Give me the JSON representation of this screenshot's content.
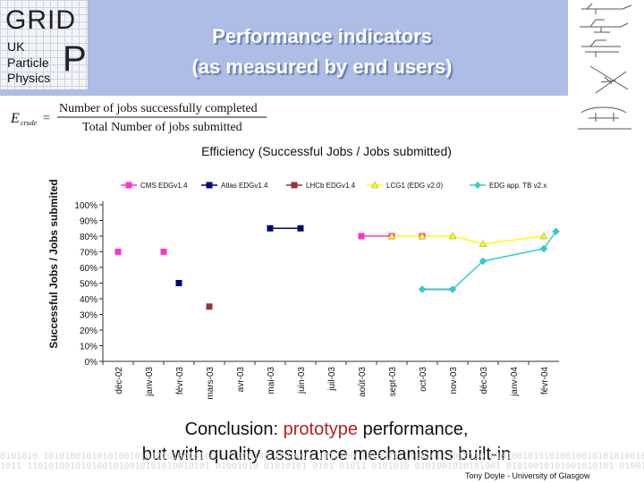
{
  "header": {
    "logo": {
      "grid": "GRID",
      "uk": "UK",
      "particle": "Particle",
      "physics": "Physics",
      "p": "P"
    },
    "title_line1": "Performance indicators",
    "title_line2": "(as measured by end users)",
    "bg_color": "#aebde6"
  },
  "formula": {
    "lhs": "E",
    "lhs_sub": "crude",
    "numerator": "Number of jobs successfully completed",
    "denominator": "Total Number of jobs submitted"
  },
  "chart_data": {
    "type": "line",
    "title": "Efficiency (Successful Jobs / Jobs submitted)",
    "xlabel": "",
    "ylabel": "Successful Jobs / Jobs submited",
    "ylim": [
      0,
      1
    ],
    "yticks": [
      "0%",
      "10%",
      "20%",
      "30%",
      "40%",
      "50%",
      "60%",
      "70%",
      "80%",
      "90%",
      "100%"
    ],
    "categories": [
      "déc-02",
      "janv-03",
      "févr-03",
      "mars-03",
      "avr-03",
      "mai-03",
      "juin-03",
      "juil-03",
      "août-03",
      "sept-03",
      "oct-03",
      "nov-03",
      "déc-03",
      "janv-04",
      "févr-04"
    ],
    "legend_position": "top",
    "series": [
      {
        "name": "CMS EDGv1.4",
        "color": "#ff33cc",
        "marker": "square",
        "connect": false,
        "points": [
          {
            "x": 0,
            "y": 0.7
          },
          {
            "x": 1.5,
            "y": 0.7
          }
        ]
      },
      {
        "name": "Atlas EDGv1.4",
        "color": "#000080",
        "marker": "square",
        "connect": false,
        "points": [
          {
            "x": 2,
            "y": 0.5
          },
          {
            "x": 5,
            "y": 0.85
          },
          {
            "x": 6,
            "y": 0.85
          }
        ]
      },
      {
        "name": "LHCb EDGv1.4",
        "color": "#993333",
        "marker": "square",
        "connect": false,
        "points": [
          {
            "x": 3,
            "y": 0.35
          }
        ]
      },
      {
        "name": "LCG1 (EDG v2.0)",
        "color": "#ffff00",
        "marker": "triangle",
        "connect": true,
        "points": [
          {
            "x": 9,
            "y": 0.8
          },
          {
            "x": 10,
            "y": 0.8
          },
          {
            "x": 11,
            "y": 0.8
          },
          {
            "x": 12,
            "y": 0.75
          },
          {
            "x": 14,
            "y": 0.8
          }
        ]
      },
      {
        "name": "EDG app. TB v2.x",
        "color": "#33cccc",
        "marker": "diamond",
        "connect": true,
        "points": [
          {
            "x": 10,
            "y": 0.46
          },
          {
            "x": 11,
            "y": 0.46
          },
          {
            "x": 12,
            "y": 0.64
          },
          {
            "x": 14,
            "y": 0.72
          },
          {
            "x": 14.4,
            "y": 0.83
          }
        ]
      }
    ],
    "extra_segments": [
      {
        "color": "#ff33cc",
        "points": [
          {
            "x": 8,
            "y": 0.8
          },
          {
            "x": 9,
            "y": 0.8
          }
        ],
        "label": "magenta run"
      },
      {
        "color": "#000080",
        "points": [
          {
            "x": 5,
            "y": 0.85
          },
          {
            "x": 6,
            "y": 0.85
          }
        ],
        "label": "atlas run"
      },
      {
        "color": "#000080",
        "points": [
          {
            "x": 10,
            "y": 0.46
          },
          {
            "x": 11,
            "y": 0.46
          }
        ],
        "label": "navy run"
      }
    ],
    "extra_points": [
      {
        "color": "#ff33cc",
        "marker": "square",
        "x": 8,
        "y": 0.8
      },
      {
        "color": "#ff33cc",
        "marker": "square",
        "x": 9,
        "y": 0.8
      },
      {
        "color": "#ff33cc",
        "marker": "square",
        "x": 10,
        "y": 0.8
      },
      {
        "color": "#000080",
        "marker": "diamond",
        "x": 10,
        "y": 0.46
      },
      {
        "color": "#000080",
        "marker": "diamond",
        "x": 11,
        "y": 0.46
      },
      {
        "color": "#000080",
        "marker": "diamond",
        "x": 12,
        "y": 0.64
      },
      {
        "color": "#000080",
        "marker": "diamond",
        "x": 14,
        "y": 0.72
      },
      {
        "color": "#000080",
        "marker": "diamond",
        "x": 14.4,
        "y": 0.83
      }
    ]
  },
  "conclusion": {
    "pre": "Conclusion: ",
    "highlight": "prototype",
    "post": " performance,",
    "line2": "but with quality assurance mechanisms built-in"
  },
  "footer": {
    "credit": "Tony Doyle - University of Glasgow",
    "binary": [
      "0101010 1010100101010100101010101001010010 1010100 1010011 1010100 1010010 1010101 1010110 0101001010101001001010101001010101001001",
      "1011 1101010010101001010010101010010101 01001010 01010101 0101 01011 0101010 0101001010101001 01010010101001010101 0100101"
    ]
  }
}
